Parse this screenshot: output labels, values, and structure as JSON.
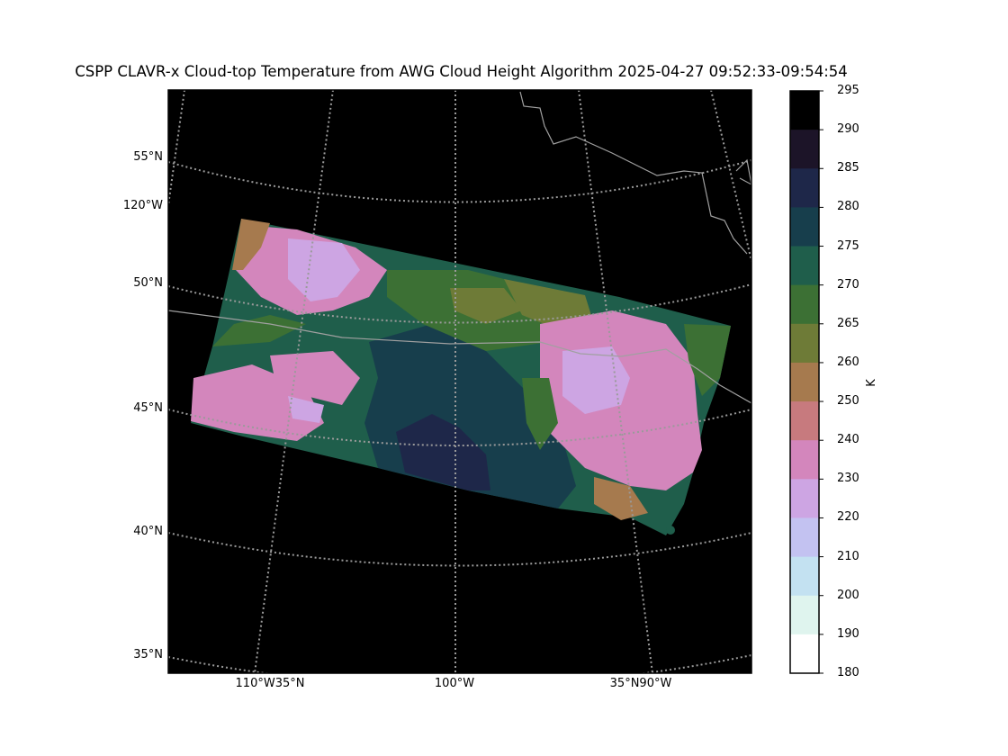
{
  "title": "CSPP CLAVR-x Cloud-top Temperature from AWG Cloud Height Algorithm 2025-04-27 09:52:33-09:54:54",
  "map": {
    "background": "#000000",
    "lat_labels": [
      "55°N",
      "50°N",
      "45°N",
      "40°N",
      "35°N"
    ],
    "lon_label_left": "120°W",
    "bottom_labels": [
      "110°W35°N",
      "100°W",
      "35°N90°W"
    ]
  },
  "colorbar": {
    "unit": "K",
    "ticks": [
      "295",
      "290",
      "285",
      "280",
      "275",
      "270",
      "265",
      "260",
      "250",
      "240",
      "230",
      "220",
      "210",
      "200",
      "190",
      "180"
    ],
    "bin_colors": [
      "#000000",
      "#1c1428",
      "#1e2749",
      "#173e4c",
      "#1f5e4b",
      "#3c7034",
      "#6e7b37",
      "#a67a4e",
      "#c77a7e",
      "#d386bc",
      "#cda5e3",
      "#c3c2f1",
      "#c3e1f1",
      "#dff4ee",
      "#ffffff"
    ]
  },
  "chart_data": {
    "type": "heatmap",
    "title": "CSPP CLAVR-x Cloud-top Temperature from AWG Cloud Height Algorithm 2025-04-27 09:52:33-09:54:54",
    "zlabel": "K",
    "zlim": [
      180,
      295
    ],
    "colorbar_levels": [
      180,
      190,
      200,
      210,
      220,
      230,
      240,
      250,
      260,
      265,
      270,
      275,
      280,
      285,
      290,
      295
    ],
    "lat_ticks": [
      "55°N",
      "50°N",
      "45°N",
      "40°N",
      "35°N"
    ],
    "lon_ticks": [
      "120°W",
      "110°W",
      "100°W",
      "90°W"
    ]
  }
}
